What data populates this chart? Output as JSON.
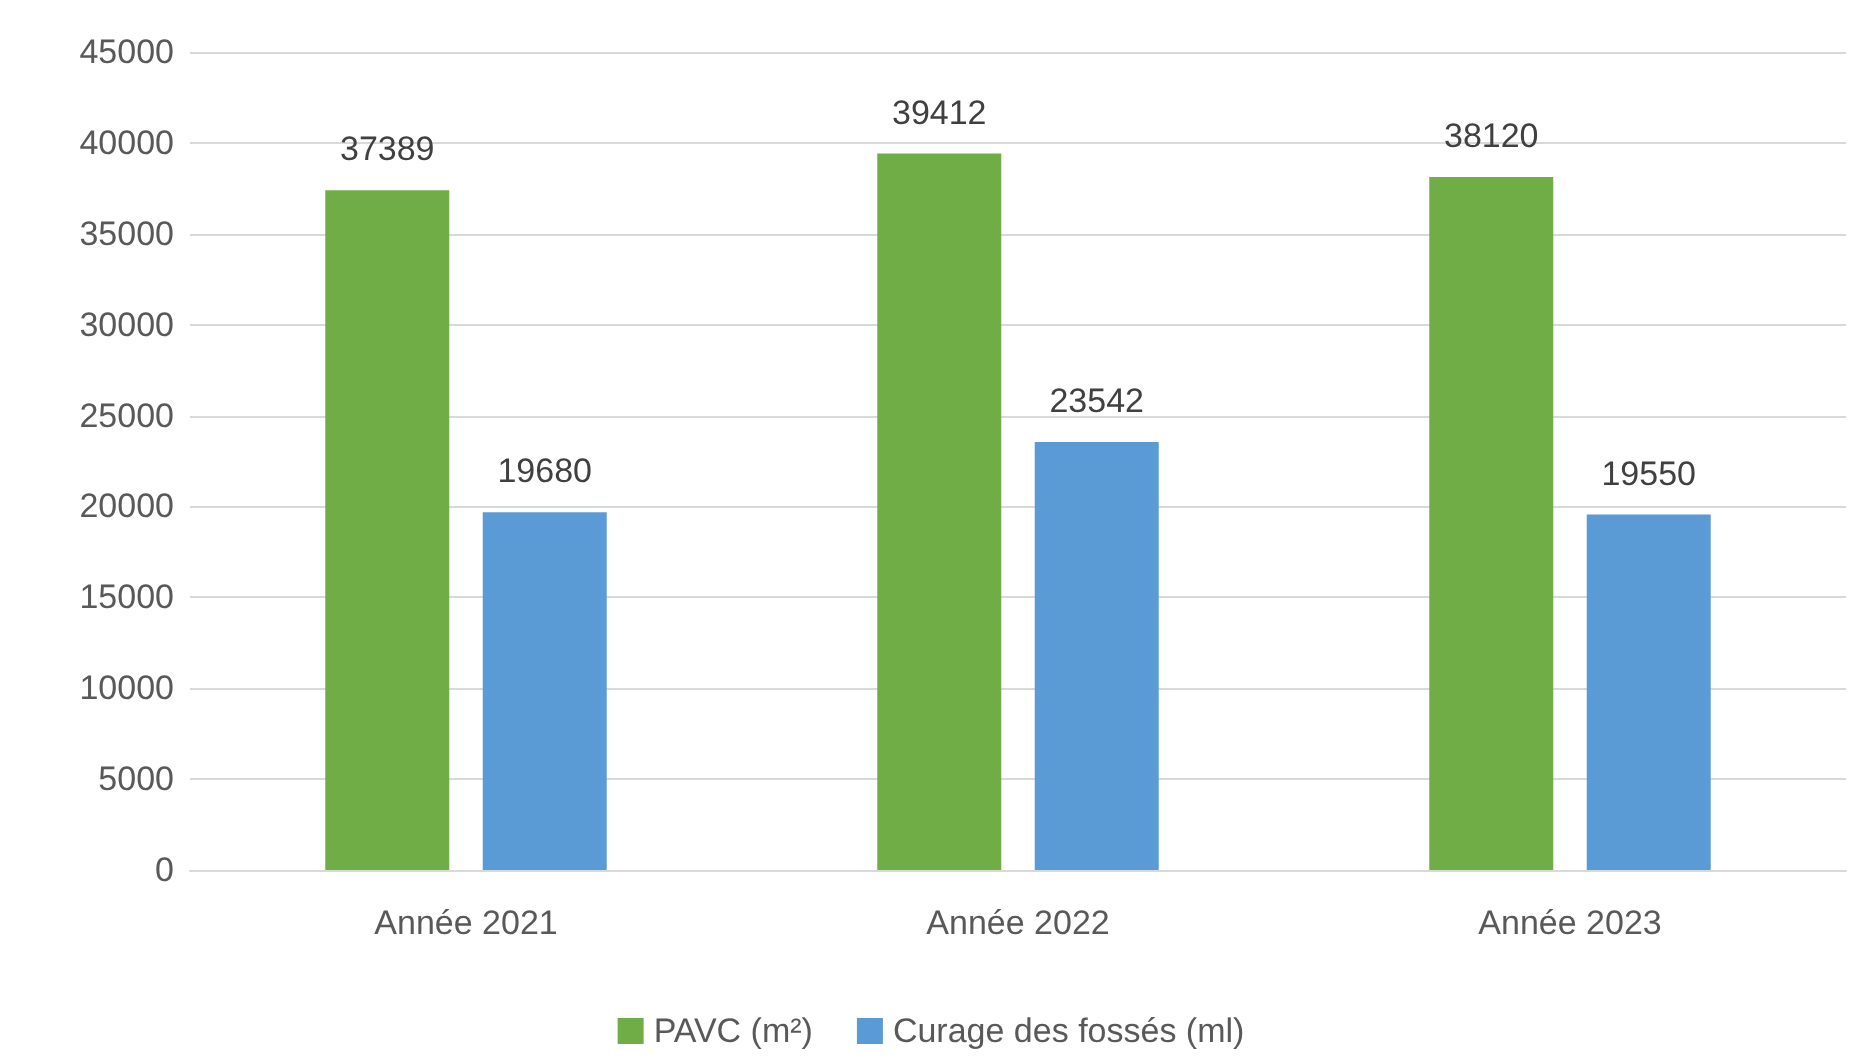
{
  "chart_data": {
    "type": "bar",
    "categories": [
      "Année 2021",
      "Année 2022",
      "Année 2023"
    ],
    "series": [
      {
        "name": "PAVC (m²)",
        "color": "#70ad47",
        "values": [
          37389,
          39412,
          38120
        ]
      },
      {
        "name": "Curage des fossés (ml)",
        "color": "#5b9bd5",
        "values": [
          19680,
          23542,
          19550
        ]
      }
    ],
    "ylim": [
      0,
      45000
    ],
    "yticks": [
      0,
      5000,
      10000,
      15000,
      20000,
      25000,
      30000,
      35000,
      40000,
      45000
    ],
    "grid": "y",
    "legend": "bottom",
    "data_labels": true
  }
}
